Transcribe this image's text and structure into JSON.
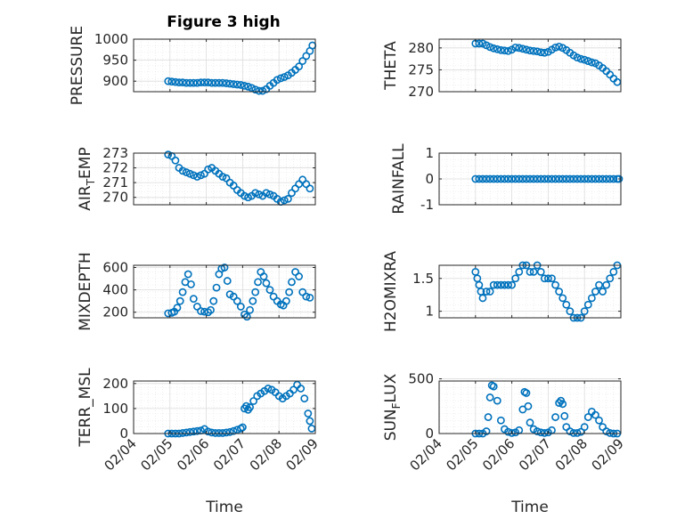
{
  "figure": {
    "title": "Figure 3 high",
    "xlabel": "Time",
    "xtick_labels": [
      "02/04",
      "02/05",
      "02/06",
      "02/07",
      "02/08",
      "02/09"
    ],
    "marker_color": "#0072BD"
  },
  "chart_data": [
    {
      "type": "scatter",
      "ylabel": "PRESSURE",
      "ylim": [
        875,
        1000
      ],
      "yticks": [
        900,
        950,
        1000
      ],
      "xlim": [
        4,
        9
      ],
      "grid": true,
      "x": [
        4.95,
        5.05,
        5.15,
        5.25,
        5.35,
        5.45,
        5.55,
        5.65,
        5.75,
        5.85,
        5.95,
        6.05,
        6.15,
        6.25,
        6.35,
        6.45,
        6.55,
        6.65,
        6.75,
        6.85,
        6.95,
        7.05,
        7.15,
        7.25,
        7.35,
        7.45,
        7.55,
        7.65,
        7.75,
        7.85,
        7.95,
        8.05,
        8.15,
        8.25,
        8.35,
        8.45,
        8.55,
        8.65,
        8.75,
        8.85,
        8.92
      ],
      "y": [
        900,
        899,
        898,
        897,
        897,
        896,
        896,
        896,
        896,
        897,
        897,
        897,
        896,
        896,
        896,
        896,
        895,
        894,
        893,
        892,
        891,
        889,
        887,
        884,
        880,
        877,
        877,
        881,
        889,
        896,
        903,
        907,
        910,
        914,
        920,
        927,
        935,
        948,
        960,
        972,
        985
      ]
    },
    {
      "type": "scatter",
      "ylabel": "THETA",
      "ylim": [
        270,
        282
      ],
      "yticks": [
        270,
        275,
        280
      ],
      "xlim": [
        4,
        9
      ],
      "grid": true,
      "x": [
        5.0,
        5.1,
        5.2,
        5.3,
        5.4,
        5.5,
        5.6,
        5.7,
        5.8,
        5.9,
        6.0,
        6.1,
        6.2,
        6.3,
        6.4,
        6.5,
        6.6,
        6.7,
        6.8,
        6.9,
        7.0,
        7.1,
        7.2,
        7.3,
        7.4,
        7.5,
        7.6,
        7.7,
        7.8,
        7.9,
        8.0,
        8.1,
        8.2,
        8.3,
        8.4,
        8.5,
        8.6,
        8.7,
        8.8,
        8.9
      ],
      "y": [
        281,
        281,
        281,
        280.6,
        280.2,
        279.9,
        279.7,
        279.5,
        279.4,
        279.3,
        279.6,
        280.1,
        280.0,
        279.8,
        279.6,
        279.4,
        279.3,
        279.2,
        279.0,
        278.9,
        279.1,
        279.6,
        280.1,
        280.3,
        280.0,
        279.5,
        278.9,
        278.3,
        277.8,
        277.5,
        277.3,
        277.0,
        276.7,
        276.5,
        276.0,
        275.4,
        274.7,
        273.9,
        273.0,
        272.2
      ]
    },
    {
      "type": "scatter",
      "ylabel": "AIR_TEMP",
      "ylim": [
        269.5,
        273
      ],
      "yticks": [
        270,
        271,
        272,
        273
      ],
      "xlim": [
        4,
        9
      ],
      "grid": true,
      "x": [
        4.95,
        5.05,
        5.15,
        5.25,
        5.35,
        5.45,
        5.55,
        5.65,
        5.75,
        5.85,
        5.95,
        6.05,
        6.15,
        6.25,
        6.35,
        6.45,
        6.55,
        6.65,
        6.75,
        6.85,
        6.95,
        7.05,
        7.15,
        7.25,
        7.35,
        7.45,
        7.55,
        7.65,
        7.75,
        7.85,
        7.95,
        8.05,
        8.15,
        8.25,
        8.35,
        8.45,
        8.55,
        8.65,
        8.75,
        8.85
      ],
      "y": [
        272.9,
        272.8,
        272.5,
        272.0,
        271.8,
        271.7,
        271.6,
        271.5,
        271.4,
        271.5,
        271.6,
        271.9,
        272.0,
        271.8,
        271.6,
        271.4,
        271.3,
        271.0,
        270.8,
        270.5,
        270.3,
        270.1,
        270.0,
        270.1,
        270.3,
        270.2,
        270.1,
        270.3,
        270.2,
        270.1,
        269.9,
        269.7,
        269.8,
        269.9,
        270.3,
        270.6,
        270.9,
        271.2,
        270.9,
        270.6
      ]
    },
    {
      "type": "scatter",
      "ylabel": "RAINFALL",
      "ylim": [
        -1,
        1
      ],
      "yticks": [
        -1,
        0,
        1
      ],
      "xlim": [
        4,
        9
      ],
      "grid": true,
      "x": [
        5.0,
        5.1,
        5.2,
        5.3,
        5.4,
        5.5,
        5.6,
        5.7,
        5.8,
        5.9,
        6.0,
        6.1,
        6.2,
        6.3,
        6.4,
        6.5,
        6.6,
        6.7,
        6.8,
        6.9,
        7.0,
        7.1,
        7.2,
        7.3,
        7.4,
        7.5,
        7.6,
        7.7,
        7.8,
        7.9,
        8.0,
        8.1,
        8.2,
        8.3,
        8.4,
        8.5,
        8.6,
        8.7,
        8.8,
        8.9,
        8.95
      ],
      "y": [
        0,
        0,
        0,
        0,
        0,
        0,
        0,
        0,
        0,
        0,
        0,
        0,
        0,
        0,
        0,
        0,
        0,
        0,
        0,
        0,
        0,
        0,
        0,
        0,
        0,
        0,
        0,
        0,
        0,
        0,
        0,
        0,
        0,
        0,
        0,
        0,
        0,
        0,
        0,
        0,
        0
      ]
    },
    {
      "type": "scatter",
      "ylabel": "MIXDEPTH",
      "ylim": [
        150,
        620
      ],
      "yticks": [
        200,
        400,
        600
      ],
      "xlim": [
        4,
        9
      ],
      "grid": true,
      "x": [
        4.95,
        5.05,
        5.12,
        5.2,
        5.28,
        5.35,
        5.42,
        5.5,
        5.58,
        5.65,
        5.75,
        5.85,
        5.95,
        6.05,
        6.12,
        6.2,
        6.28,
        6.35,
        6.42,
        6.5,
        6.58,
        6.65,
        6.75,
        6.85,
        6.95,
        7.05,
        7.12,
        7.2,
        7.28,
        7.35,
        7.42,
        7.5,
        7.58,
        7.65,
        7.75,
        7.85,
        7.95,
        8.05,
        8.12,
        8.2,
        8.28,
        8.35,
        8.45,
        8.55,
        8.65,
        8.75,
        8.85
      ],
      "y": [
        190,
        195,
        205,
        240,
        300,
        380,
        470,
        540,
        450,
        320,
        250,
        210,
        205,
        200,
        220,
        300,
        420,
        540,
        590,
        600,
        480,
        360,
        340,
        300,
        250,
        180,
        160,
        220,
        300,
        380,
        470,
        560,
        520,
        460,
        400,
        340,
        300,
        270,
        260,
        300,
        380,
        470,
        560,
        520,
        380,
        340,
        330
      ]
    },
    {
      "type": "scatter",
      "ylabel": "H2OMIXRA",
      "ylim": [
        0.9,
        1.7
      ],
      "yticks": [
        1,
        1.5
      ],
      "xlim": [
        4,
        9
      ],
      "grid": true,
      "x": [
        5.0,
        5.05,
        5.1,
        5.15,
        5.2,
        5.3,
        5.4,
        5.5,
        5.6,
        5.7,
        5.8,
        5.9,
        6.0,
        6.1,
        6.2,
        6.3,
        6.4,
        6.5,
        6.6,
        6.7,
        6.8,
        6.9,
        7.0,
        7.1,
        7.2,
        7.3,
        7.4,
        7.5,
        7.6,
        7.7,
        7.8,
        7.9,
        8.0,
        8.1,
        8.2,
        8.3,
        8.4,
        8.5,
        8.6,
        8.7,
        8.8,
        8.9
      ],
      "y": [
        1.6,
        1.5,
        1.4,
        1.3,
        1.2,
        1.3,
        1.3,
        1.4,
        1.4,
        1.4,
        1.4,
        1.4,
        1.4,
        1.5,
        1.6,
        1.7,
        1.7,
        1.6,
        1.6,
        1.7,
        1.6,
        1.5,
        1.5,
        1.5,
        1.4,
        1.3,
        1.2,
        1.1,
        1.0,
        0.9,
        0.9,
        0.9,
        1.0,
        1.1,
        1.2,
        1.3,
        1.4,
        1.3,
        1.4,
        1.5,
        1.6,
        1.7
      ]
    },
    {
      "type": "scatter",
      "ylabel": "TERR_MSL",
      "ylim": [
        0,
        210
      ],
      "yticks": [
        0,
        100,
        200
      ],
      "xlim": [
        4,
        9
      ],
      "grid": true,
      "x": [
        4.95,
        5.05,
        5.15,
        5.25,
        5.35,
        5.45,
        5.55,
        5.65,
        5.75,
        5.85,
        5.95,
        6.05,
        6.15,
        6.25,
        6.35,
        6.45,
        6.55,
        6.65,
        6.75,
        6.85,
        6.95,
        7.0,
        7.05,
        7.1,
        7.15,
        7.2,
        7.3,
        7.4,
        7.5,
        7.6,
        7.7,
        7.8,
        7.9,
        8.0,
        8.1,
        8.2,
        8.3,
        8.4,
        8.5,
        8.6,
        8.7,
        8.8,
        8.85,
        8.9
      ],
      "y": [
        0,
        0,
        0,
        0,
        2,
        4,
        6,
        8,
        10,
        12,
        18,
        8,
        4,
        2,
        2,
        2,
        4,
        6,
        10,
        15,
        20,
        25,
        100,
        110,
        95,
        105,
        130,
        150,
        160,
        170,
        180,
        175,
        165,
        150,
        140,
        150,
        160,
        175,
        195,
        180,
        140,
        80,
        50,
        20
      ]
    },
    {
      "type": "scatter",
      "ylabel": "SUN_FLUX",
      "ylim": [
        0,
        480
      ],
      "yticks": [
        0,
        500
      ],
      "xlim": [
        4,
        9
      ],
      "grid": true,
      "x": [
        5.0,
        5.1,
        5.2,
        5.3,
        5.35,
        5.4,
        5.45,
        5.5,
        5.6,
        5.7,
        5.8,
        5.9,
        6.0,
        6.1,
        6.2,
        6.3,
        6.35,
        6.4,
        6.45,
        6.5,
        6.6,
        6.7,
        6.8,
        6.9,
        7.0,
        7.1,
        7.2,
        7.3,
        7.35,
        7.4,
        7.45,
        7.5,
        7.6,
        7.7,
        7.8,
        7.9,
        8.0,
        8.1,
        8.2,
        8.3,
        8.4,
        8.5,
        8.6,
        8.7,
        8.8,
        8.9
      ],
      "y": [
        0,
        0,
        0,
        20,
        150,
        330,
        440,
        430,
        300,
        120,
        40,
        15,
        5,
        10,
        30,
        220,
        380,
        370,
        250,
        100,
        40,
        20,
        10,
        5,
        10,
        30,
        150,
        280,
        300,
        270,
        160,
        60,
        20,
        5,
        5,
        15,
        60,
        150,
        200,
        170,
        120,
        60,
        20,
        5,
        0,
        0
      ]
    }
  ]
}
